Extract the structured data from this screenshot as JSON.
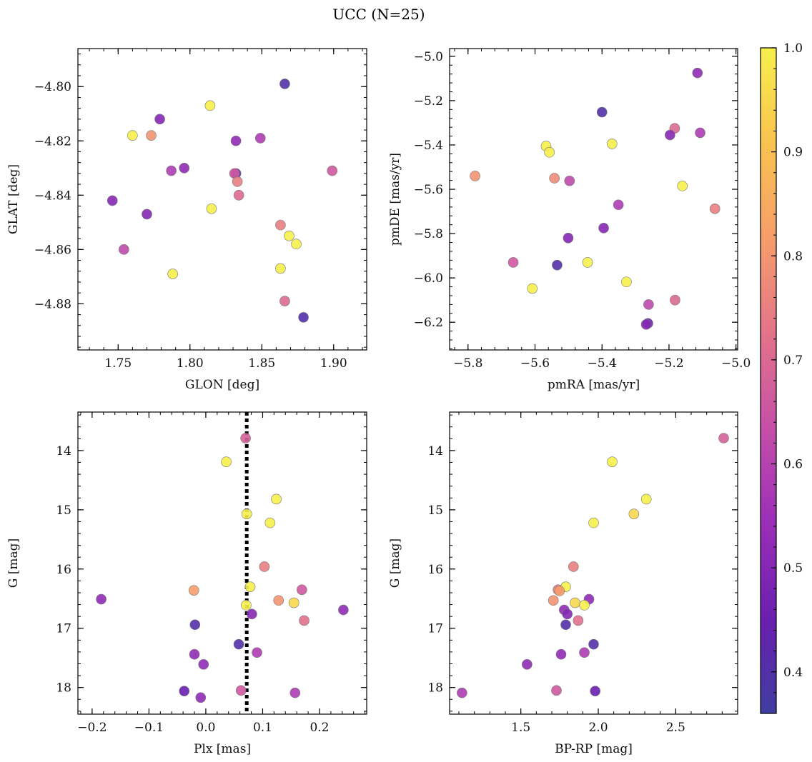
{
  "figure": {
    "title": "UCC (N=25)"
  },
  "colorbar": {
    "min": 0.36,
    "max": 1.0,
    "ticks": [
      0.4,
      0.5,
      0.6,
      0.7,
      0.8,
      0.9,
      1.0
    ],
    "tick_labels": [
      "0.4",
      "0.5",
      "0.6",
      "0.7",
      "0.8",
      "0.9",
      "1.0"
    ],
    "colormap": "plasma",
    "stops": [
      "#3f3ea0",
      "#6a1fb0",
      "#9c2fb8",
      "#c64fa8",
      "#e3738a",
      "#f69c6b",
      "#f9c44f",
      "#f7f04d"
    ]
  },
  "chart_data": [
    {
      "type": "scatter",
      "id": "glon-glat",
      "title": "",
      "xlabel": "GLON [deg]",
      "ylabel": "GLAT [deg]",
      "xlim": [
        1.722,
        1.923
      ],
      "ylim": [
        -4.897,
        -4.786
      ],
      "xticks": [
        1.75,
        1.8,
        1.85,
        1.9
      ],
      "xtick_labels": [
        "1.75",
        "1.80",
        "1.85",
        "1.90"
      ],
      "yticks": [
        -4.8,
        -4.82,
        -4.84,
        -4.86,
        -4.88
      ],
      "ytick_labels": [
        "−4.80",
        "−4.82",
        "−4.84",
        "−4.86",
        "−4.88"
      ],
      "invert_y": false,
      "points": [
        {
          "x": 1.866,
          "y": -4.799,
          "c": 0.4
        },
        {
          "x": 1.814,
          "y": -4.807,
          "c": 1.0
        },
        {
          "x": 1.779,
          "y": -4.812,
          "c": 0.5
        },
        {
          "x": 1.76,
          "y": -4.818,
          "c": 1.0
        },
        {
          "x": 1.773,
          "y": -4.818,
          "c": 0.8
        },
        {
          "x": 1.832,
          "y": -4.82,
          "c": 0.52
        },
        {
          "x": 1.849,
          "y": -4.819,
          "c": 0.58
        },
        {
          "x": 1.796,
          "y": -4.83,
          "c": 0.52
        },
        {
          "x": 1.787,
          "y": -4.831,
          "c": 0.58
        },
        {
          "x": 1.832,
          "y": -4.832,
          "c": 0.45
        },
        {
          "x": 1.831,
          "y": -4.832,
          "c": 0.66
        },
        {
          "x": 1.899,
          "y": -4.831,
          "c": 0.66
        },
        {
          "x": 1.833,
          "y": -4.835,
          "c": 0.75
        },
        {
          "x": 1.834,
          "y": -4.84,
          "c": 0.7
        },
        {
          "x": 1.746,
          "y": -4.842,
          "c": 0.5
        },
        {
          "x": 1.815,
          "y": -4.845,
          "c": 1.0
        },
        {
          "x": 1.77,
          "y": -4.847,
          "c": 0.5
        },
        {
          "x": 1.863,
          "y": -4.851,
          "c": 0.75
        },
        {
          "x": 1.869,
          "y": -4.855,
          "c": 1.0
        },
        {
          "x": 1.874,
          "y": -4.858,
          "c": 1.0
        },
        {
          "x": 1.754,
          "y": -4.86,
          "c": 0.62
        },
        {
          "x": 1.863,
          "y": -4.867,
          "c": 1.0
        },
        {
          "x": 1.788,
          "y": -4.869,
          "c": 1.0
        },
        {
          "x": 1.866,
          "y": -4.879,
          "c": 0.7
        },
        {
          "x": 1.879,
          "y": -4.885,
          "c": 0.4
        }
      ]
    },
    {
      "type": "scatter",
      "id": "pmra-pmde",
      "title": "",
      "xlabel": "pmRA [mas/yr]",
      "ylabel": "pmDE [mas/yr]",
      "xlim": [
        -5.855,
        -4.995
      ],
      "ylim": [
        -6.325,
        -4.965
      ],
      "xticks": [
        -5.8,
        -5.6,
        -5.4,
        -5.2,
        -5.0
      ],
      "xtick_labels": [
        "−5.8",
        "−5.6",
        "−5.4",
        "−5.2",
        "−5.0"
      ],
      "yticks": [
        -5.0,
        -5.2,
        -5.4,
        -5.6,
        -5.8,
        -6.0,
        -6.2
      ],
      "ytick_labels": [
        "−5.0",
        "−5.2",
        "−5.4",
        "−5.6",
        "−5.8",
        "−6.0",
        "−6.2"
      ],
      "invert_y": false,
      "points": [
        {
          "x": -5.115,
          "y": -5.075,
          "c": 0.52
        },
        {
          "x": -5.4,
          "y": -5.252,
          "c": 0.4
        },
        {
          "x": -5.183,
          "y": -5.325,
          "c": 0.7
        },
        {
          "x": -5.107,
          "y": -5.345,
          "c": 0.58
        },
        {
          "x": -5.197,
          "y": -5.355,
          "c": 0.5
        },
        {
          "x": -5.37,
          "y": -5.395,
          "c": 1.0
        },
        {
          "x": -5.567,
          "y": -5.405,
          "c": 1.0
        },
        {
          "x": -5.557,
          "y": -5.433,
          "c": 1.0
        },
        {
          "x": -5.779,
          "y": -5.54,
          "c": 0.8
        },
        {
          "x": -5.542,
          "y": -5.55,
          "c": 0.78
        },
        {
          "x": -5.497,
          "y": -5.562,
          "c": 0.62
        },
        {
          "x": -5.16,
          "y": -5.585,
          "c": 1.0
        },
        {
          "x": -5.351,
          "y": -5.67,
          "c": 0.58
        },
        {
          "x": -5.063,
          "y": -5.688,
          "c": 0.75
        },
        {
          "x": -5.395,
          "y": -5.775,
          "c": 0.5
        },
        {
          "x": -5.501,
          "y": -5.82,
          "c": 0.5
        },
        {
          "x": -5.665,
          "y": -5.93,
          "c": 0.66
        },
        {
          "x": -5.443,
          "y": -5.93,
          "c": 1.0
        },
        {
          "x": -5.534,
          "y": -5.942,
          "c": 0.4
        },
        {
          "x": -5.327,
          "y": -6.018,
          "c": 1.0
        },
        {
          "x": -5.608,
          "y": -6.048,
          "c": 1.0
        },
        {
          "x": -5.182,
          "y": -6.1,
          "c": 0.7
        },
        {
          "x": -5.261,
          "y": -6.12,
          "c": 0.62
        },
        {
          "x": -5.263,
          "y": -6.205,
          "c": 0.45
        },
        {
          "x": -5.268,
          "y": -6.21,
          "c": 0.5
        }
      ]
    },
    {
      "type": "scatter",
      "id": "plx-g",
      "title": "",
      "xlabel": "Plx [mas]",
      "ylabel": "G [mag]",
      "xlim": [
        -0.225,
        0.283
      ],
      "ylim": [
        13.35,
        18.45
      ],
      "xticks": [
        -0.2,
        -0.1,
        0.0,
        0.1,
        0.2
      ],
      "xtick_labels": [
        "−0.2",
        "−0.1",
        "0.0",
        "0.1",
        "0.2"
      ],
      "yticks": [
        14,
        15,
        16,
        17,
        18
      ],
      "ytick_labels": [
        "14",
        "15",
        "16",
        "17",
        "18"
      ],
      "invert_y": true,
      "vline": {
        "x": 0.072,
        "style": "dotted"
      },
      "points": [
        {
          "x": 0.07,
          "y": 13.79,
          "c": 0.68
        },
        {
          "x": 0.036,
          "y": 14.19,
          "c": 1.0
        },
        {
          "x": 0.124,
          "y": 14.82,
          "c": 1.0
        },
        {
          "x": 0.072,
          "y": 15.07,
          "c": 1.0
        },
        {
          "x": 0.113,
          "y": 15.22,
          "c": 1.0
        },
        {
          "x": 0.103,
          "y": 15.96,
          "c": 0.75
        },
        {
          "x": 0.078,
          "y": 16.3,
          "c": 1.0
        },
        {
          "x": -0.021,
          "y": 16.36,
          "c": 0.82
        },
        {
          "x": 0.169,
          "y": 16.35,
          "c": 0.66
        },
        {
          "x": -0.184,
          "y": 16.51,
          "c": 0.52
        },
        {
          "x": 0.128,
          "y": 16.53,
          "c": 0.8
        },
        {
          "x": 0.155,
          "y": 16.57,
          "c": 0.95
        },
        {
          "x": 0.071,
          "y": 16.61,
          "c": 1.0
        },
        {
          "x": 0.242,
          "y": 16.69,
          "c": 0.52
        },
        {
          "x": 0.081,
          "y": 16.76,
          "c": 0.5
        },
        {
          "x": 0.173,
          "y": 16.87,
          "c": 0.72
        },
        {
          "x": -0.019,
          "y": 16.94,
          "c": 0.4
        },
        {
          "x": 0.058,
          "y": 17.27,
          "c": 0.4
        },
        {
          "x": 0.09,
          "y": 17.41,
          "c": 0.58
        },
        {
          "x": -0.02,
          "y": 17.44,
          "c": 0.52
        },
        {
          "x": -0.004,
          "y": 17.61,
          "c": 0.52
        },
        {
          "x": -0.038,
          "y": 18.06,
          "c": 0.45
        },
        {
          "x": 0.062,
          "y": 18.05,
          "c": 0.66
        },
        {
          "x": 0.157,
          "y": 18.09,
          "c": 0.58
        },
        {
          "x": -0.009,
          "y": 18.17,
          "c": 0.52
        }
      ]
    },
    {
      "type": "scatter",
      "id": "bprp-g",
      "title": "",
      "xlabel": "BP-RP [mag]",
      "ylabel": "G [mag]",
      "xlim": [
        1.04,
        2.9
      ],
      "ylim": [
        13.35,
        18.45
      ],
      "xticks": [
        1.5,
        2.0,
        2.5
      ],
      "xtick_labels": [
        "1.5",
        "2.0",
        "2.5"
      ],
      "yticks": [
        14,
        15,
        16,
        17,
        18
      ],
      "ytick_labels": [
        "14",
        "15",
        "16",
        "17",
        "18"
      ],
      "invert_y": true,
      "points": [
        {
          "x": 2.81,
          "y": 13.79,
          "c": 0.68
        },
        {
          "x": 2.09,
          "y": 14.19,
          "c": 1.0
        },
        {
          "x": 2.31,
          "y": 14.82,
          "c": 1.0
        },
        {
          "x": 2.23,
          "y": 15.07,
          "c": 0.95
        },
        {
          "x": 1.97,
          "y": 15.22,
          "c": 1.0
        },
        {
          "x": 1.84,
          "y": 15.96,
          "c": 0.75
        },
        {
          "x": 1.79,
          "y": 16.3,
          "c": 1.0
        },
        {
          "x": 1.74,
          "y": 16.35,
          "c": 0.75
        },
        {
          "x": 1.75,
          "y": 16.37,
          "c": 0.82
        },
        {
          "x": 1.94,
          "y": 16.51,
          "c": 0.52
        },
        {
          "x": 1.71,
          "y": 16.53,
          "c": 0.8
        },
        {
          "x": 1.85,
          "y": 16.57,
          "c": 0.95
        },
        {
          "x": 1.91,
          "y": 16.61,
          "c": 1.0
        },
        {
          "x": 1.78,
          "y": 16.69,
          "c": 0.52
        },
        {
          "x": 1.8,
          "y": 16.76,
          "c": 0.5
        },
        {
          "x": 1.87,
          "y": 16.87,
          "c": 0.72
        },
        {
          "x": 1.79,
          "y": 16.94,
          "c": 0.4
        },
        {
          "x": 1.97,
          "y": 17.27,
          "c": 0.4
        },
        {
          "x": 1.91,
          "y": 17.41,
          "c": 0.58
        },
        {
          "x": 1.76,
          "y": 17.44,
          "c": 0.52
        },
        {
          "x": 1.54,
          "y": 17.61,
          "c": 0.52
        },
        {
          "x": 1.73,
          "y": 18.05,
          "c": 0.66
        },
        {
          "x": 1.98,
          "y": 18.06,
          "c": 0.45
        },
        {
          "x": 1.12,
          "y": 18.09,
          "c": 0.58
        }
      ]
    }
  ]
}
